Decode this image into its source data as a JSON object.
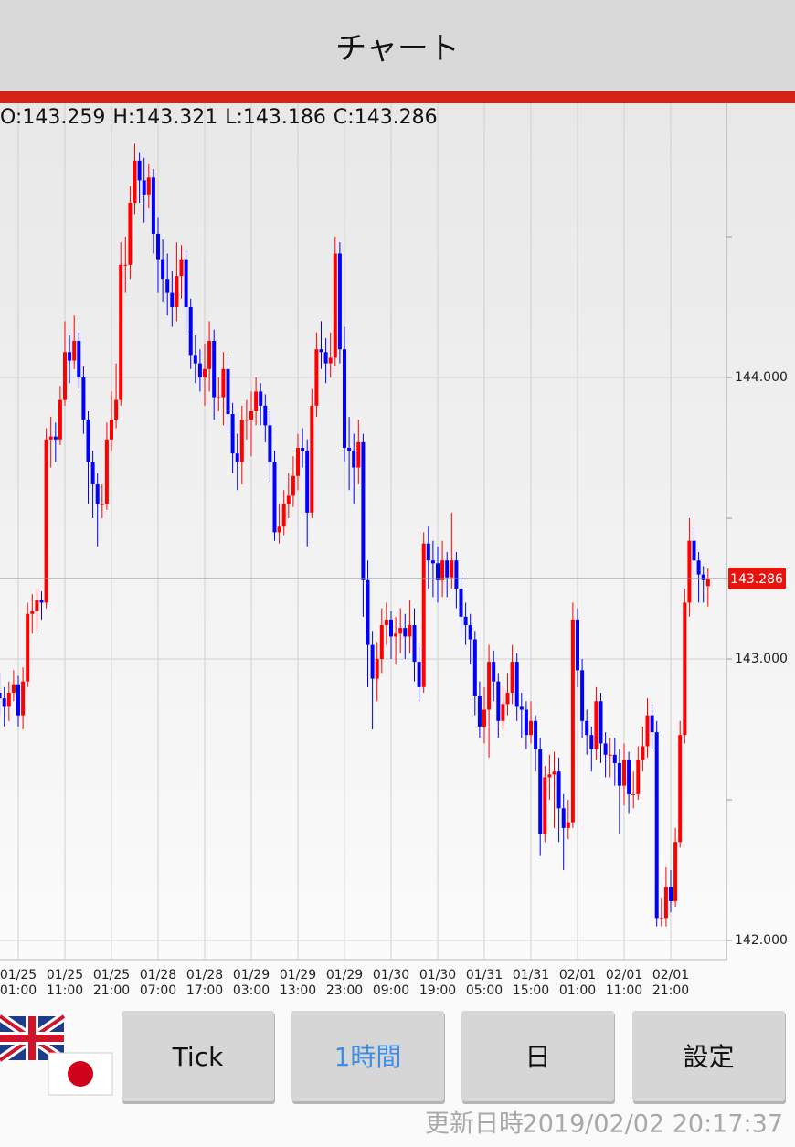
{
  "header": {
    "title": "チャート"
  },
  "chart_data": {
    "type": "candlestick",
    "ohlc_header": [
      "O:143.259",
      "H:143.321",
      "L:143.186",
      "C:143.286"
    ],
    "up_color": "#ff0000",
    "down_color": "#0000ff",
    "ylim": [
      141.932,
      144.974
    ],
    "yticks": [
      {
        "value": 142,
        "label": "142.000"
      },
      {
        "value": 143,
        "label": "143.000"
      },
      {
        "value": 144,
        "label": "144.000"
      }
    ],
    "yminor": [
      142.5,
      143.5,
      144.5
    ],
    "last_price": 143.286,
    "xticks": [
      {
        "value": 4,
        "label": [
          "01/25",
          "01:00"
        ]
      },
      {
        "value": 14,
        "label": [
          "01/25",
          "11:00"
        ]
      },
      {
        "value": 24,
        "label": [
          "01/25",
          "21:00"
        ]
      },
      {
        "value": 34,
        "label": [
          "01/28",
          "07:00"
        ]
      },
      {
        "value": 44,
        "label": [
          "01/28",
          "17:00"
        ]
      },
      {
        "value": 54,
        "label": [
          "01/29",
          "03:00"
        ]
      },
      {
        "value": 64,
        "label": [
          "01/29",
          "13:00"
        ]
      },
      {
        "value": 74,
        "label": [
          "01/29",
          "23:00"
        ]
      },
      {
        "value": 84,
        "label": [
          "01/30",
          "09:00"
        ]
      },
      {
        "value": 94,
        "label": [
          "01/30",
          "19:00"
        ]
      },
      {
        "value": 104,
        "label": [
          "01/31",
          "05:00"
        ]
      },
      {
        "value": 114,
        "label": [
          "01/31",
          "15:00"
        ]
      },
      {
        "value": 124,
        "label": [
          "02/01",
          "01:00"
        ]
      },
      {
        "value": 134,
        "label": [
          "02/01",
          "11:00"
        ]
      },
      {
        "value": 144,
        "label": [
          "02/01",
          "21:00"
        ]
      }
    ],
    "candles": [
      [
        142.88,
        142.95,
        142.8,
        142.86
      ],
      [
        142.86,
        142.9,
        142.76,
        142.83
      ],
      [
        142.83,
        142.92,
        142.78,
        142.88
      ],
      [
        142.88,
        142.96,
        142.85,
        142.91
      ],
      [
        142.91,
        142.94,
        142.76,
        142.8
      ],
      [
        142.8,
        142.97,
        142.75,
        142.92
      ],
      [
        142.92,
        143.2,
        142.9,
        143.16
      ],
      [
        143.16,
        143.23,
        143.09,
        143.17
      ],
      [
        143.17,
        143.25,
        143.1,
        143.21
      ],
      [
        143.21,
        143.24,
        143.14,
        143.2
      ],
      [
        143.2,
        143.82,
        143.18,
        143.78
      ],
      [
        143.78,
        143.86,
        143.68,
        143.79
      ],
      [
        143.79,
        143.84,
        143.7,
        143.78
      ],
      [
        143.78,
        143.97,
        143.76,
        143.92
      ],
      [
        143.92,
        144.2,
        143.9,
        144.09
      ],
      [
        144.09,
        144.15,
        143.98,
        144.06
      ],
      [
        144.06,
        144.22,
        144.03,
        144.13
      ],
      [
        144.13,
        144.16,
        143.96,
        144.0
      ],
      [
        144.0,
        144.04,
        143.8,
        143.85
      ],
      [
        143.85,
        143.88,
        143.55,
        143.7
      ],
      [
        143.7,
        143.74,
        143.5,
        143.62
      ],
      [
        143.62,
        143.66,
        143.4,
        143.55
      ],
      [
        143.55,
        143.62,
        143.5,
        143.55
      ],
      [
        143.55,
        143.84,
        143.53,
        143.78
      ],
      [
        143.78,
        143.95,
        143.74,
        143.85
      ],
      [
        143.85,
        144.05,
        143.82,
        143.92
      ],
      [
        143.92,
        144.48,
        143.9,
        144.4
      ],
      [
        144.4,
        144.5,
        144.3,
        144.4
      ],
      [
        144.4,
        144.68,
        144.35,
        144.62
      ],
      [
        144.62,
        144.83,
        144.58,
        144.77
      ],
      [
        144.77,
        144.8,
        144.62,
        144.7
      ],
      [
        144.7,
        144.78,
        144.55,
        144.65
      ],
      [
        144.65,
        144.76,
        144.6,
        144.71
      ],
      [
        144.71,
        144.74,
        144.44,
        144.51
      ],
      [
        144.51,
        144.57,
        144.3,
        144.42
      ],
      [
        144.42,
        144.49,
        144.27,
        144.35
      ],
      [
        144.35,
        144.44,
        144.22,
        144.3
      ],
      [
        144.3,
        144.38,
        144.18,
        144.25
      ],
      [
        144.25,
        144.48,
        144.2,
        144.36
      ],
      [
        144.36,
        144.47,
        144.28,
        144.42
      ],
      [
        144.42,
        144.45,
        144.15,
        144.25
      ],
      [
        144.25,
        144.28,
        144.03,
        144.08
      ],
      [
        144.08,
        144.15,
        143.98,
        144.05
      ],
      [
        144.05,
        144.1,
        143.95,
        144.0
      ],
      [
        144.0,
        144.12,
        143.9,
        144.03
      ],
      [
        144.03,
        144.2,
        143.95,
        144.13
      ],
      [
        144.13,
        144.17,
        143.85,
        143.93
      ],
      [
        143.93,
        144.0,
        143.88,
        143.93
      ],
      [
        143.93,
        144.09,
        143.83,
        144.03
      ],
      [
        144.03,
        144.07,
        143.8,
        143.87
      ],
      [
        143.87,
        143.91,
        143.66,
        143.73
      ],
      [
        143.73,
        143.8,
        143.6,
        143.7
      ],
      [
        143.7,
        143.9,
        143.62,
        143.85
      ],
      [
        143.85,
        143.92,
        143.78,
        143.85
      ],
      [
        143.85,
        143.95,
        143.72,
        143.88
      ],
      [
        143.88,
        144.0,
        143.83,
        143.95
      ],
      [
        143.95,
        143.98,
        143.83,
        143.9
      ],
      [
        143.9,
        143.94,
        143.77,
        143.83
      ],
      [
        143.83,
        143.88,
        143.63,
        143.7
      ],
      [
        143.7,
        143.74,
        143.42,
        143.45
      ],
      [
        143.45,
        143.55,
        143.41,
        143.47
      ],
      [
        143.47,
        143.6,
        143.44,
        143.55
      ],
      [
        143.55,
        143.66,
        143.5,
        143.58
      ],
      [
        143.58,
        143.72,
        143.54,
        143.65
      ],
      [
        143.65,
        143.8,
        143.6,
        143.75
      ],
      [
        143.75,
        143.82,
        143.68,
        143.74
      ],
      [
        143.74,
        143.78,
        143.4,
        143.52
      ],
      [
        143.52,
        143.96,
        143.5,
        143.9
      ],
      [
        143.9,
        144.16,
        143.86,
        144.1
      ],
      [
        144.1,
        144.2,
        144.03,
        144.09
      ],
      [
        144.09,
        144.14,
        143.98,
        144.05
      ],
      [
        144.05,
        144.16,
        144.0,
        144.07
      ],
      [
        144.07,
        144.5,
        144.04,
        144.44
      ],
      [
        144.44,
        144.48,
        144.05,
        144.1
      ],
      [
        144.1,
        144.18,
        143.7,
        143.75
      ],
      [
        143.75,
        143.86,
        143.6,
        143.74
      ],
      [
        143.74,
        143.8,
        143.55,
        143.68
      ],
      [
        143.68,
        143.85,
        143.62,
        143.77
      ],
      [
        143.77,
        143.8,
        143.15,
        143.28
      ],
      [
        143.28,
        143.35,
        142.9,
        143.05
      ],
      [
        143.05,
        143.1,
        142.75,
        142.93
      ],
      [
        142.93,
        143.06,
        142.85,
        143.0
      ],
      [
        143.0,
        143.18,
        142.95,
        143.12
      ],
      [
        143.12,
        143.2,
        143.05,
        143.14
      ],
      [
        143.14,
        143.17,
        143.0,
        143.08
      ],
      [
        143.08,
        143.15,
        142.98,
        143.09
      ],
      [
        143.09,
        143.18,
        143.02,
        143.11
      ],
      [
        143.11,
        143.16,
        143.0,
        143.08
      ],
      [
        143.08,
        143.21,
        143.02,
        143.12
      ],
      [
        143.12,
        143.18,
        142.92,
        142.99
      ],
      [
        142.99,
        143.05,
        142.85,
        142.9
      ],
      [
        142.9,
        143.45,
        142.88,
        143.41
      ],
      [
        143.41,
        143.47,
        143.25,
        143.35
      ],
      [
        143.35,
        143.42,
        143.22,
        143.34
      ],
      [
        143.34,
        143.4,
        143.2,
        143.28
      ],
      [
        143.28,
        143.42,
        143.22,
        143.35
      ],
      [
        143.35,
        143.38,
        143.22,
        143.29
      ],
      [
        143.29,
        143.52,
        143.25,
        143.35
      ],
      [
        143.35,
        143.38,
        143.18,
        143.25
      ],
      [
        143.25,
        143.3,
        143.08,
        143.15
      ],
      [
        143.15,
        143.2,
        143.05,
        143.12
      ],
      [
        143.12,
        143.16,
        142.98,
        143.07
      ],
      [
        143.07,
        143.1,
        142.8,
        142.87
      ],
      [
        142.87,
        142.92,
        142.72,
        142.76
      ],
      [
        142.76,
        142.9,
        142.7,
        142.82
      ],
      [
        142.82,
        143.05,
        142.65,
        142.99
      ],
      [
        142.99,
        143.03,
        142.85,
        142.92
      ],
      [
        142.92,
        142.95,
        142.72,
        142.78
      ],
      [
        142.78,
        142.9,
        142.75,
        142.84
      ],
      [
        142.84,
        142.95,
        142.8,
        142.88
      ],
      [
        142.88,
        143.05,
        142.84,
        142.99
      ],
      [
        142.99,
        143.02,
        142.78,
        142.83
      ],
      [
        142.83,
        142.88,
        142.72,
        142.82
      ],
      [
        142.82,
        142.85,
        142.68,
        142.73
      ],
      [
        142.73,
        142.85,
        142.7,
        142.78
      ],
      [
        142.78,
        142.8,
        142.6,
        142.68
      ],
      [
        142.68,
        142.72,
        142.3,
        142.38
      ],
      [
        142.38,
        142.62,
        142.35,
        142.58
      ],
      [
        142.58,
        142.66,
        142.5,
        142.59
      ],
      [
        142.59,
        142.67,
        142.4,
        142.6
      ],
      [
        142.6,
        142.65,
        142.35,
        142.47
      ],
      [
        142.47,
        142.52,
        142.25,
        142.4
      ],
      [
        142.4,
        142.5,
        142.36,
        142.42
      ],
      [
        142.42,
        143.2,
        142.4,
        143.14
      ],
      [
        143.14,
        143.18,
        142.9,
        142.96
      ],
      [
        142.96,
        143.0,
        142.72,
        142.78
      ],
      [
        142.78,
        142.82,
        142.66,
        142.73
      ],
      [
        142.73,
        142.76,
        142.6,
        142.68
      ],
      [
        142.68,
        142.9,
        142.64,
        142.85
      ],
      [
        142.85,
        142.88,
        142.63,
        142.7
      ],
      [
        142.7,
        142.74,
        142.58,
        142.66
      ],
      [
        142.66,
        142.72,
        142.58,
        142.66
      ],
      [
        142.66,
        142.72,
        142.55,
        142.63
      ],
      [
        142.63,
        142.68,
        142.38,
        142.55
      ],
      [
        142.55,
        142.7,
        142.48,
        142.64
      ],
      [
        142.64,
        142.67,
        142.45,
        142.52
      ],
      [
        142.52,
        142.6,
        142.47,
        142.52
      ],
      [
        142.52,
        142.69,
        142.5,
        142.64
      ],
      [
        142.64,
        142.76,
        142.6,
        142.69
      ],
      [
        142.69,
        142.86,
        142.65,
        142.8
      ],
      [
        142.8,
        142.84,
        142.68,
        142.74
      ],
      [
        142.74,
        142.78,
        142.05,
        142.08
      ],
      [
        142.08,
        142.15,
        142.05,
        142.08
      ],
      [
        142.08,
        142.26,
        142.05,
        142.19
      ],
      [
        142.19,
        142.25,
        142.1,
        142.14
      ],
      [
        142.14,
        142.4,
        142.12,
        142.35
      ],
      [
        142.35,
        142.78,
        142.33,
        142.73
      ],
      [
        142.73,
        143.25,
        142.7,
        143.2
      ],
      [
        143.2,
        143.5,
        143.15,
        143.42
      ],
      [
        143.42,
        143.47,
        143.28,
        143.35
      ],
      [
        143.35,
        143.38,
        143.2,
        143.3
      ],
      [
        143.3,
        143.33,
        143.2,
        143.28
      ],
      [
        143.259,
        143.321,
        143.186,
        143.286
      ]
    ]
  },
  "buttons": [
    "Tick",
    "1時間",
    "日",
    "設定"
  ],
  "footer": {
    "label": "更新日時",
    "timestamp": "2019/02/02 20:17:37"
  }
}
